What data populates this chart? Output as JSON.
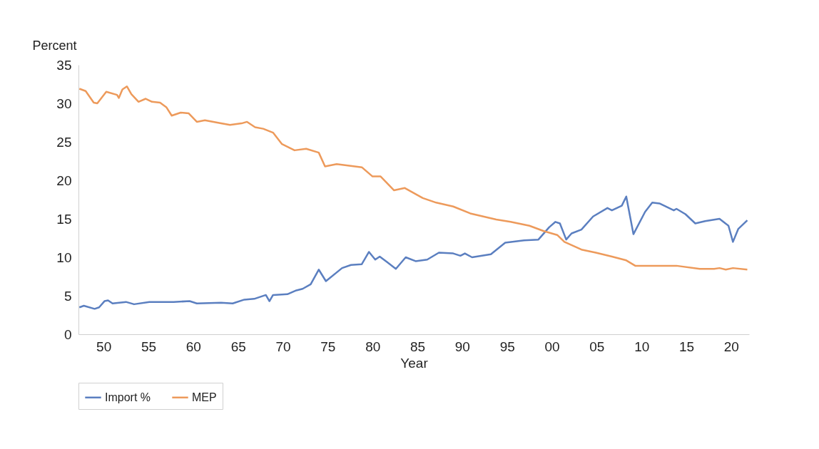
{
  "chart_data": {
    "type": "line",
    "xlabel": "Year",
    "ylabel": "Percent",
    "xlim": [
      1947.2,
      2022
    ],
    "ylim": [
      0,
      35
    ],
    "yticks": [
      0,
      5,
      10,
      15,
      20,
      25,
      30,
      35
    ],
    "xticks": [
      {
        "value": 1950,
        "label": "50"
      },
      {
        "value": 1955,
        "label": "55"
      },
      {
        "value": 1960,
        "label": "60"
      },
      {
        "value": 1965,
        "label": "65"
      },
      {
        "value": 1970,
        "label": "70"
      },
      {
        "value": 1975,
        "label": "75"
      },
      {
        "value": 1980,
        "label": "80"
      },
      {
        "value": 1985,
        "label": "85"
      },
      {
        "value": 1990,
        "label": "90"
      },
      {
        "value": 1995,
        "label": "95"
      },
      {
        "value": 2000,
        "label": "00"
      },
      {
        "value": 2005,
        "label": "05"
      },
      {
        "value": 2010,
        "label": "10"
      },
      {
        "value": 2015,
        "label": "15"
      },
      {
        "value": 2020,
        "label": "20"
      }
    ],
    "grid": false,
    "legend": "bottom",
    "marker": "none",
    "line_style": "solid",
    "series": [
      {
        "name": "Import %",
        "color": "#5b7fc0",
        "x": [
          1947.3,
          1947.8,
          1949.0,
          1949.5,
          1950.1,
          1950.5,
          1951.0,
          1952.5,
          1953.4,
          1955.1,
          1957.8,
          1959.6,
          1960.4,
          1963.1,
          1964.4,
          1965.7,
          1966.8,
          1968.1,
          1968.5,
          1968.9,
          1970.5,
          1971.5,
          1972.2,
          1973.1,
          1974.0,
          1974.8,
          1976.6,
          1977.6,
          1978.8,
          1979.6,
          1980.3,
          1980.8,
          1981.6,
          1982.6,
          1983.7,
          1984.8,
          1986.1,
          1987.4,
          1989.0,
          1989.8,
          1990.3,
          1991.1,
          1993.2,
          1994.8,
          1996.9,
          1998.5,
          1999.7,
          2000.4,
          2000.9,
          2001.6,
          2002.2,
          2003.3,
          2004.6,
          2006.2,
          2006.7,
          2007.8,
          2008.3,
          2009.1,
          2010.4,
          2011.2,
          2012.0,
          2013.6,
          2013.9,
          2014.9,
          2016.0,
          2017.1,
          2018.7,
          2019.7,
          2020.2,
          2020.8,
          2021.8
        ],
        "values": [
          3.5,
          3.7,
          3.3,
          3.5,
          4.3,
          4.4,
          4.0,
          4.2,
          3.9,
          4.2,
          4.2,
          4.3,
          4.0,
          4.1,
          4.0,
          4.5,
          4.6,
          5.1,
          4.3,
          5.1,
          5.2,
          5.7,
          5.9,
          6.5,
          8.4,
          6.9,
          8.6,
          9.0,
          9.1,
          10.7,
          9.7,
          10.1,
          9.4,
          8.5,
          10.0,
          9.5,
          9.7,
          10.6,
          10.5,
          10.2,
          10.5,
          10.0,
          10.4,
          11.9,
          12.2,
          12.3,
          13.9,
          14.6,
          14.4,
          12.3,
          13.1,
          13.6,
          15.3,
          16.4,
          16.1,
          16.7,
          17.9,
          13.0,
          15.9,
          17.1,
          17.0,
          16.1,
          16.3,
          15.6,
          14.4,
          14.7,
          15.0,
          14.1,
          12.0,
          13.7,
          14.8
        ]
      },
      {
        "name": "MEP",
        "color": "#ed9a5b",
        "x": [
          1947.3,
          1948.0,
          1948.9,
          1949.3,
          1950.3,
          1951.5,
          1951.7,
          1952.1,
          1952.6,
          1953.1,
          1953.9,
          1954.7,
          1955.4,
          1956.3,
          1957.0,
          1957.6,
          1958.6,
          1959.5,
          1960.4,
          1961.3,
          1963.1,
          1964.1,
          1965.4,
          1966.0,
          1966.9,
          1967.8,
          1968.9,
          1969.9,
          1971.3,
          1972.6,
          1974.0,
          1974.7,
          1976.0,
          1978.8,
          1980.0,
          1980.9,
          1982.4,
          1983.6,
          1985.6,
          1987.1,
          1989.0,
          1990.9,
          1993.8,
          1995.4,
          1997.5,
          1999.1,
          2000.6,
          2001.4,
          2003.3,
          2004.9,
          2006.7,
          2008.3,
          2009.3,
          2013.9,
          2016.5,
          2018.1,
          2018.7,
          2019.4,
          2020.2,
          2021.8
        ],
        "values": [
          31.9,
          31.6,
          30.1,
          30.0,
          31.5,
          31.1,
          30.7,
          31.8,
          32.2,
          31.2,
          30.2,
          30.6,
          30.2,
          30.1,
          29.5,
          28.4,
          28.8,
          28.7,
          27.6,
          27.8,
          27.4,
          27.2,
          27.4,
          27.6,
          26.9,
          26.7,
          26.2,
          24.7,
          23.9,
          24.1,
          23.6,
          21.8,
          22.1,
          21.7,
          20.5,
          20.5,
          18.7,
          19.0,
          17.7,
          17.1,
          16.6,
          15.7,
          14.9,
          14.6,
          14.1,
          13.4,
          12.9,
          12.0,
          11.0,
          10.6,
          10.1,
          9.6,
          8.9,
          8.9,
          8.5,
          8.5,
          8.6,
          8.4,
          8.6,
          8.4
        ]
      }
    ]
  }
}
